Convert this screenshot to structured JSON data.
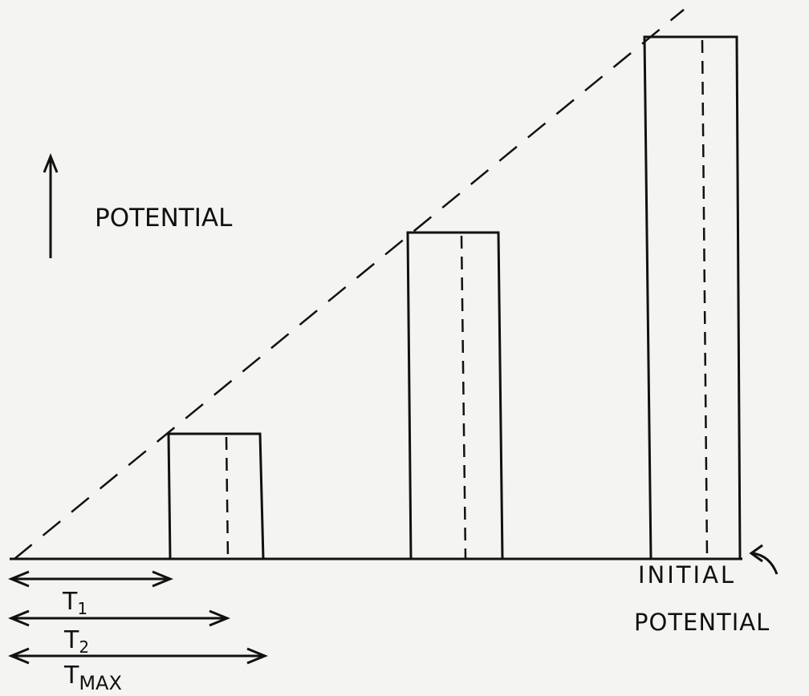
{
  "axis_label": "POTENTIAL",
  "time_arrows": [
    {
      "main": "T",
      "sub": "1"
    },
    {
      "main": "T",
      "sub": "2"
    },
    {
      "main": "T",
      "sub": "MAX"
    }
  ],
  "initial_potential": [
    "INITIAL",
    "POTENTIAL"
  ]
}
